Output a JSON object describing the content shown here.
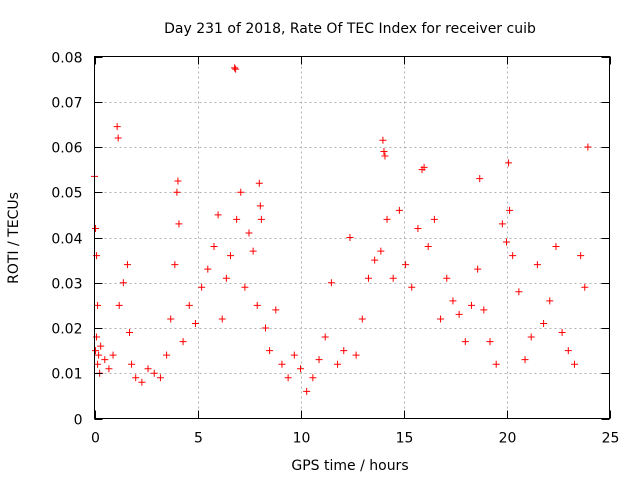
{
  "chart_data": {
    "type": "scatter",
    "title": "Day 231 of 2018, Rate Of TEC Index for receiver cuib",
    "xlabel": "GPS time / hours",
    "ylabel": "ROTI / TECUs",
    "xlim": [
      0,
      25
    ],
    "ylim": [
      0,
      0.08
    ],
    "x_ticks": [
      0,
      5,
      10,
      15,
      20,
      25
    ],
    "x_tick_labels": [
      "0",
      "5",
      "10",
      "15",
      "20",
      "25"
    ],
    "y_ticks": [
      0,
      0.01,
      0.02,
      0.03,
      0.04,
      0.05,
      0.06,
      0.07,
      0.08
    ],
    "y_tick_labels": [
      "0",
      "0.01",
      "0.02",
      "0.03",
      "0.04",
      "0.05",
      "0.06",
      "0.07",
      "0.08"
    ],
    "grid": true,
    "marker": "+",
    "color": "#ff0000",
    "series": [
      {
        "name": "ROTI",
        "x": [
          0.0,
          0.05,
          0.1,
          0.15,
          0.2,
          0.05,
          0.1,
          0.15,
          0.25,
          0.3,
          0.5,
          0.7,
          0.9,
          1.1,
          1.15,
          1.2,
          1.4,
          1.6,
          1.7,
          1.8,
          2.0,
          2.3,
          2.6,
          2.9,
          3.2,
          3.5,
          3.7,
          3.9,
          4.0,
          4.05,
          4.1,
          4.3,
          4.6,
          4.9,
          5.2,
          5.5,
          5.8,
          6.0,
          6.2,
          6.4,
          6.6,
          6.8,
          6.85,
          6.9,
          7.1,
          7.3,
          7.5,
          7.7,
          7.9,
          8.0,
          8.05,
          8.1,
          8.3,
          8.5,
          8.8,
          9.1,
          9.4,
          9.7,
          10.0,
          10.3,
          10.6,
          10.9,
          11.2,
          11.5,
          11.8,
          12.1,
          12.4,
          12.7,
          13.0,
          13.3,
          13.6,
          13.9,
          14.0,
          14.05,
          14.1,
          14.2,
          14.5,
          14.8,
          15.1,
          15.4,
          15.7,
          15.9,
          16.0,
          16.2,
          16.5,
          16.8,
          17.1,
          17.4,
          17.7,
          18.0,
          18.3,
          18.6,
          18.7,
          18.9,
          19.2,
          19.5,
          19.8,
          20.0,
          20.1,
          20.15,
          20.3,
          20.6,
          20.9,
          21.2,
          21.5,
          21.8,
          22.1,
          22.4,
          22.7,
          23.0,
          23.3,
          23.6,
          23.8,
          23.95
        ],
        "y": [
          0.0535,
          0.042,
          0.036,
          0.025,
          0.014,
          0.015,
          0.018,
          0.012,
          0.01,
          0.016,
          0.013,
          0.011,
          0.014,
          0.0645,
          0.062,
          0.025,
          0.03,
          0.034,
          0.019,
          0.012,
          0.009,
          0.008,
          0.011,
          0.01,
          0.009,
          0.014,
          0.022,
          0.034,
          0.05,
          0.0525,
          0.043,
          0.017,
          0.025,
          0.021,
          0.029,
          0.033,
          0.038,
          0.045,
          0.022,
          0.031,
          0.036,
          0.0775,
          0.0772,
          0.044,
          0.05,
          0.029,
          0.041,
          0.037,
          0.025,
          0.052,
          0.047,
          0.044,
          0.02,
          0.015,
          0.024,
          0.012,
          0.009,
          0.014,
          0.011,
          0.006,
          0.009,
          0.013,
          0.018,
          0.03,
          0.012,
          0.015,
          0.04,
          0.014,
          0.022,
          0.031,
          0.035,
          0.037,
          0.0615,
          0.059,
          0.058,
          0.044,
          0.031,
          0.046,
          0.034,
          0.029,
          0.042,
          0.055,
          0.0555,
          0.038,
          0.044,
          0.022,
          0.031,
          0.026,
          0.023,
          0.017,
          0.025,
          0.033,
          0.053,
          0.024,
          0.017,
          0.012,
          0.043,
          0.039,
          0.0565,
          0.046,
          0.036,
          0.028,
          0.013,
          0.018,
          0.034,
          0.021,
          0.026,
          0.038,
          0.019,
          0.015,
          0.012,
          0.036,
          0.029,
          0.06
        ]
      }
    ]
  }
}
